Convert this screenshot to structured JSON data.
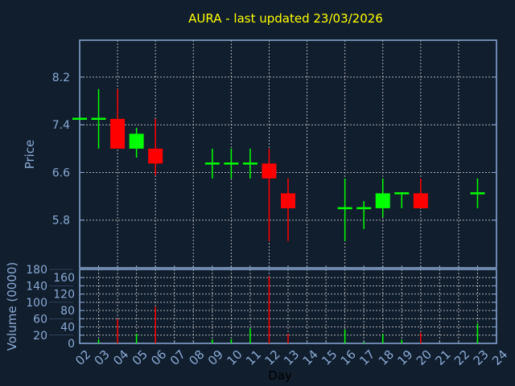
{
  "title": "AURA - last updated 23/03/2026",
  "colors": {
    "background": "#111e2e",
    "axis": "#8aaad4",
    "up": "#00ff00",
    "down": "#ff0000",
    "title": "#ffff00",
    "grid": "#c8c8c8"
  },
  "chart_data": [
    {
      "type": "candlestick",
      "ylabel": "Price",
      "ylim": [
        5.0,
        8.82
      ],
      "yticks": [
        "8.2",
        "7.4",
        "6.6",
        "5.8"
      ],
      "grid": true,
      "candles": [
        {
          "day": "02",
          "open": 7.5,
          "high": 7.5,
          "low": 7.5,
          "close": 7.5
        },
        {
          "day": "03",
          "open": 7.5,
          "high": 8.0,
          "low": 7.0,
          "close": 7.5
        },
        {
          "day": "04",
          "open": 7.5,
          "high": 8.0,
          "low": 7.0,
          "close": 7.0
        },
        {
          "day": "05",
          "open": 7.0,
          "high": 7.35,
          "low": 6.85,
          "close": 7.25
        },
        {
          "day": "06",
          "open": 7.0,
          "high": 7.5,
          "low": 6.55,
          "close": 6.75
        },
        {
          "day": "09",
          "open": 6.75,
          "high": 7.0,
          "low": 6.5,
          "close": 6.75
        },
        {
          "day": "10",
          "open": 6.75,
          "high": 7.0,
          "low": 6.5,
          "close": 6.75
        },
        {
          "day": "11",
          "open": 6.75,
          "high": 7.0,
          "low": 6.5,
          "close": 6.75
        },
        {
          "day": "12",
          "open": 6.75,
          "high": 7.0,
          "low": 5.45,
          "close": 6.5
        },
        {
          "day": "13",
          "open": 6.25,
          "high": 6.5,
          "low": 5.45,
          "close": 6.0
        },
        {
          "day": "16",
          "open": 6.0,
          "high": 6.5,
          "low": 5.45,
          "close": 6.0
        },
        {
          "day": "17",
          "open": 6.0,
          "high": 6.12,
          "low": 5.65,
          "close": 6.0
        },
        {
          "day": "18",
          "open": 6.0,
          "high": 6.5,
          "low": 5.85,
          "close": 6.25
        },
        {
          "day": "19",
          "open": 6.25,
          "high": 6.27,
          "low": 6.0,
          "close": 6.25
        },
        {
          "day": "20",
          "open": 6.25,
          "high": 6.5,
          "low": 6.0,
          "close": 6.0
        },
        {
          "day": "23",
          "open": 6.25,
          "high": 6.5,
          "low": 6.0,
          "close": 6.25
        }
      ]
    },
    {
      "type": "bar",
      "ylabel": "Volume (0000)",
      "xlabel": "Day",
      "ylim": [
        0,
        180
      ],
      "yticks": [
        "0",
        "20",
        "40",
        "60",
        "80",
        "100",
        "120",
        "140",
        "160",
        "180"
      ],
      "xticks": [
        "02",
        "03",
        "04",
        "05",
        "06",
        "07",
        "08",
        "09",
        "10",
        "11",
        "12",
        "13",
        "14",
        "15",
        "16",
        "17",
        "18",
        "19",
        "20",
        "21",
        "22",
        "23",
        "24"
      ],
      "grid": true,
      "bars": [
        {
          "day": "03",
          "value": 10,
          "direction": "up"
        },
        {
          "day": "04",
          "value": 59,
          "direction": "down"
        },
        {
          "day": "05",
          "value": 23,
          "direction": "up"
        },
        {
          "day": "06",
          "value": 89,
          "direction": "down"
        },
        {
          "day": "09",
          "value": 10,
          "direction": "up"
        },
        {
          "day": "10",
          "value": 10,
          "direction": "up"
        },
        {
          "day": "11",
          "value": 36,
          "direction": "up"
        },
        {
          "day": "12",
          "value": 163,
          "direction": "down"
        },
        {
          "day": "13",
          "value": 23,
          "direction": "down"
        },
        {
          "day": "16",
          "value": 34,
          "direction": "up"
        },
        {
          "day": "17",
          "value": 3,
          "direction": "up"
        },
        {
          "day": "18",
          "value": 23,
          "direction": "up"
        },
        {
          "day": "19",
          "value": 9,
          "direction": "up"
        },
        {
          "day": "20",
          "value": 26,
          "direction": "down"
        },
        {
          "day": "23",
          "value": 49,
          "direction": "up"
        }
      ]
    }
  ]
}
